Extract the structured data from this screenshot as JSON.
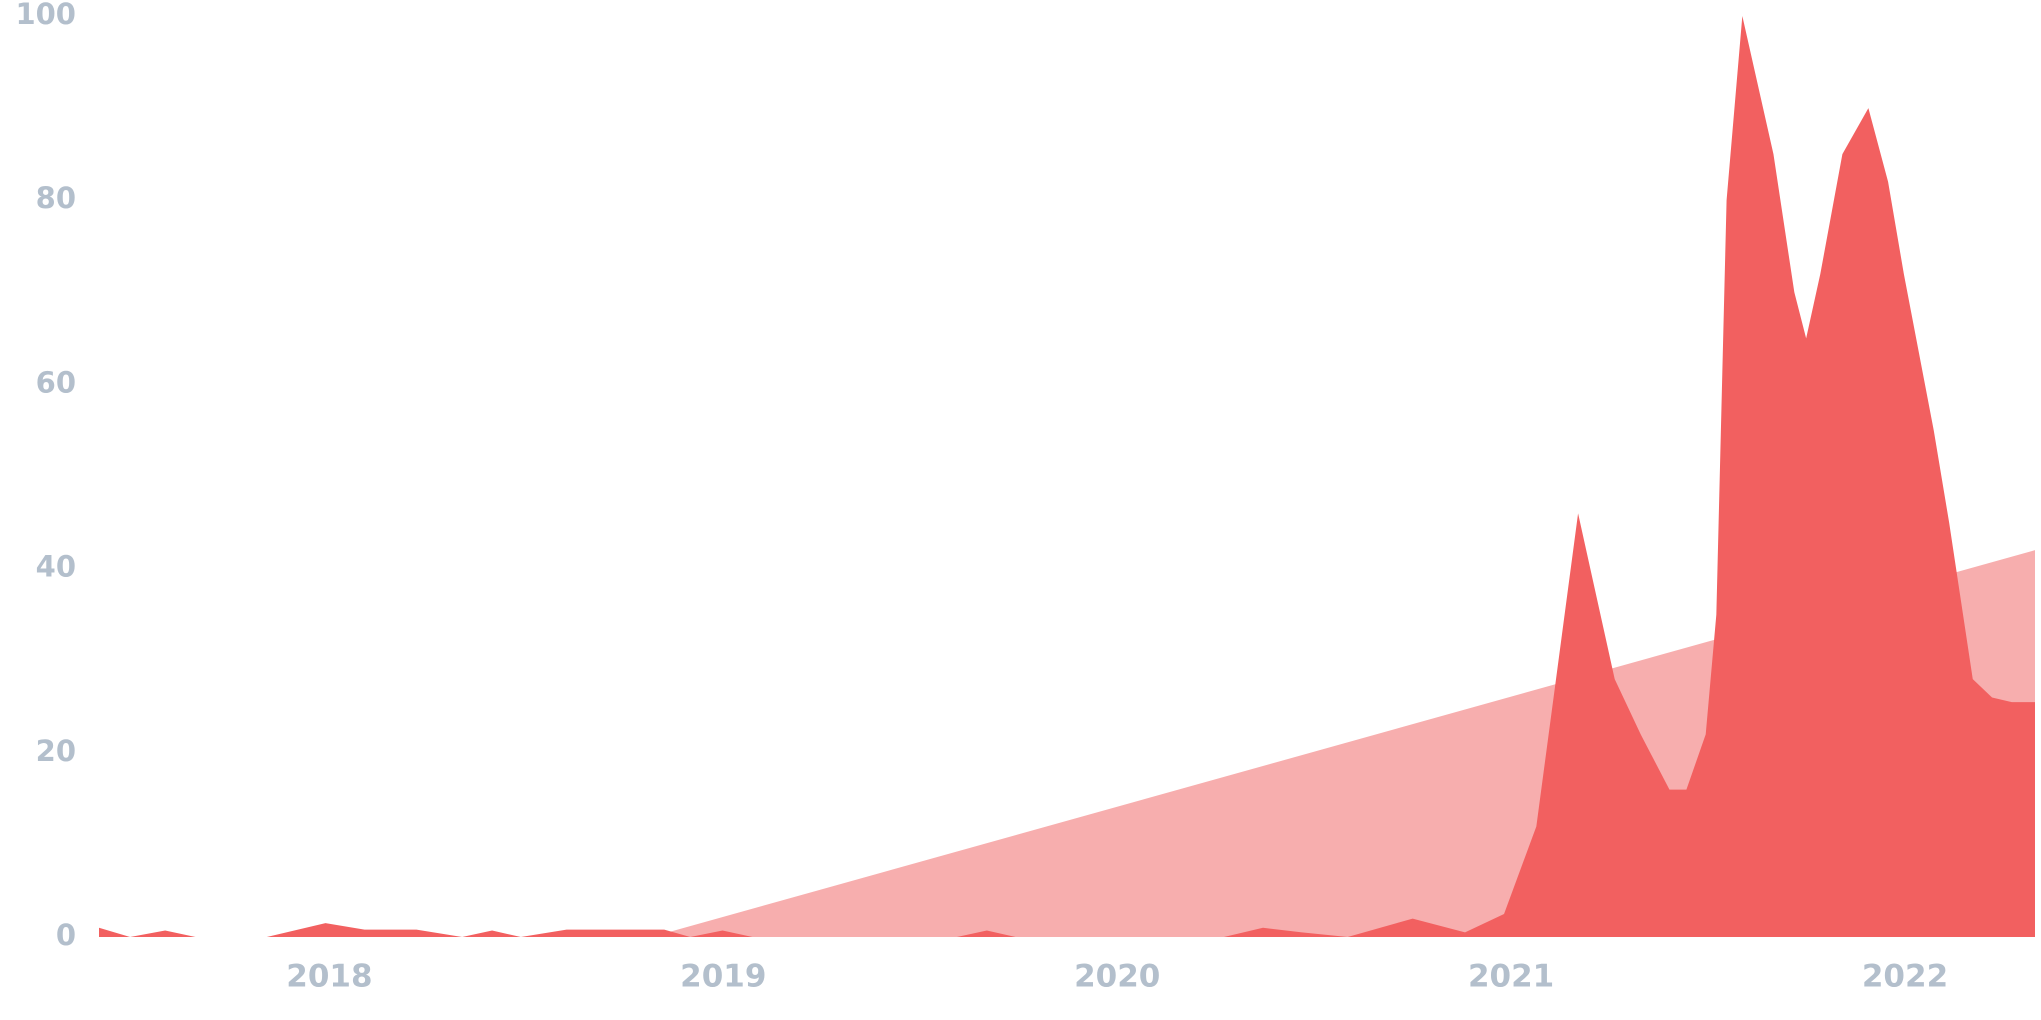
{
  "chart_data": {
    "type": "area",
    "xlim": [
      2017.415,
      2022.33
    ],
    "ylim": [
      0,
      100
    ],
    "xticks": [
      2018,
      2019,
      2020,
      2021,
      2022
    ],
    "yticks": [
      0,
      20,
      40,
      60,
      80,
      100
    ],
    "grid": false,
    "series": [
      {
        "color": "#f7aeae",
        "x": [
          2017.415,
          2018.817,
          2022.33
        ],
        "values": [
          0,
          0,
          42
        ]
      },
      {
        "color": "#f26060",
        "x": [
          2017.415,
          2017.494,
          2017.583,
          2017.66,
          2017.841,
          2017.99,
          2018.089,
          2018.221,
          2018.337,
          2018.413,
          2018.486,
          2018.602,
          2018.75,
          2018.85,
          2018.916,
          2018.998,
          2019.074,
          2019.593,
          2019.669,
          2019.742,
          2020.271,
          2020.37,
          2020.469,
          2020.585,
          2020.75,
          2020.883,
          2020.982,
          2021.064,
          2021.114,
          2021.17,
          2021.263,
          2021.329,
          2021.402,
          2021.445,
          2021.494,
          2021.521,
          2021.547,
          2021.587,
          2021.666,
          2021.719,
          2021.749,
          2021.785,
          2021.841,
          2021.907,
          2021.957,
          2021.997,
          2022.073,
          2022.112,
          2022.172,
          2022.221,
          2022.271,
          2022.33
        ],
        "values": [
          1,
          0,
          0.7,
          0,
          0,
          1.5,
          0.8,
          0.8,
          0,
          0.7,
          0,
          0.8,
          0.8,
          0.8,
          0,
          0.7,
          0,
          0,
          0.7,
          0,
          0,
          1,
          0.5,
          0,
          2,
          0.5,
          2.5,
          12,
          28,
          46,
          28,
          22,
          16,
          16,
          22,
          35,
          80,
          100,
          85,
          70,
          65,
          72,
          85,
          90,
          82,
          72,
          55,
          45,
          28,
          26,
          25.5,
          25.5
        ]
      }
    ]
  }
}
